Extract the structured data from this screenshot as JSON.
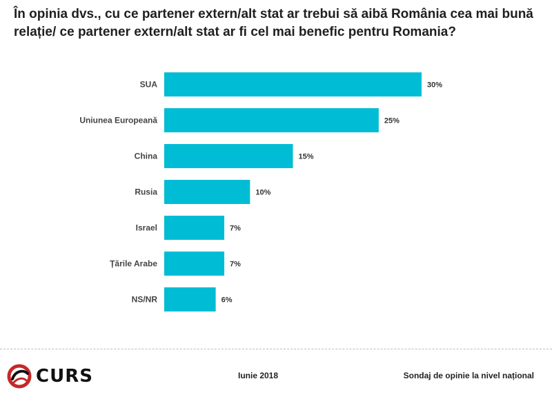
{
  "header": {
    "title": "În opinia dvs., cu ce partener extern/alt stat ar trebui să aibă România cea mai bună relație/ ce partener extern/alt stat ar fi cel mai benefic pentru Romania?"
  },
  "colors": {
    "bar": "#00bcd4",
    "logo_red": "#c62828"
  },
  "chart_data": {
    "type": "bar",
    "orientation": "horizontal",
    "categories": [
      "SUA",
      "Uniunea Europeană",
      "China",
      "Rusia",
      "Israel",
      "Țările Arabe",
      "NS/NR"
    ],
    "values": [
      30,
      25,
      15,
      10,
      7,
      7,
      6
    ],
    "value_labels": [
      "30%",
      "25%",
      "15%",
      "10%",
      "7%",
      "7%",
      "6%"
    ],
    "unit": "%",
    "title": "În opinia dvs., cu ce partener extern/alt stat ar trebui să aibă România cea mai bună relație/ ce partener extern/alt stat ar fi cel mai benefic pentru Romania?",
    "xlim": [
      0,
      30
    ],
    "grid": false,
    "legend": "none"
  },
  "footer": {
    "logo_text": "CURS",
    "date": "Iunie 2018",
    "source": "Sondaj de opinie la nivel național"
  }
}
